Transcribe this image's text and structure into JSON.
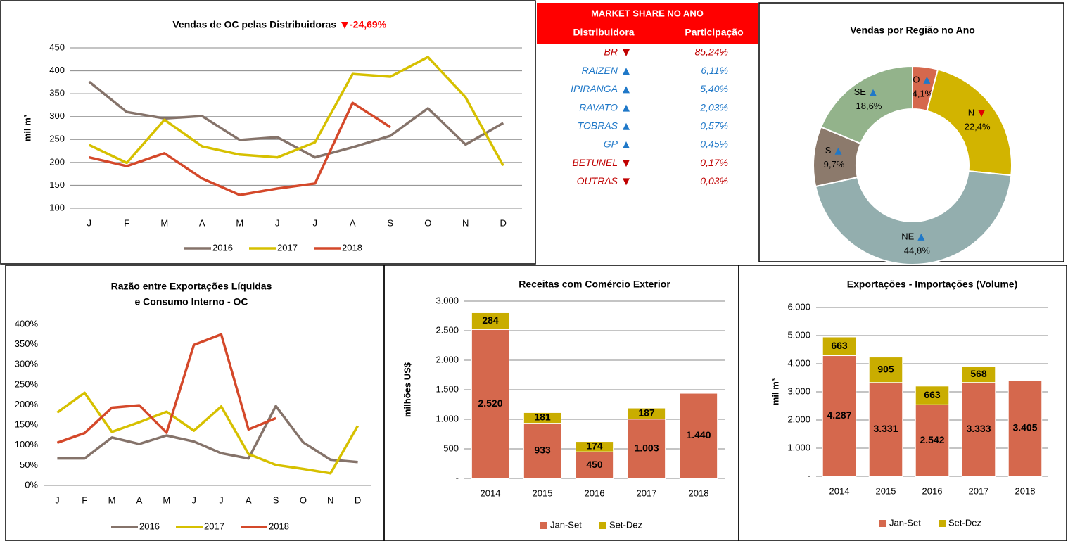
{
  "chart_data": [
    {
      "type": "line",
      "title": "Vendas de OC pelas Distribuidoras",
      "annotation": "-24,69%",
      "ylabel": "mil m³",
      "categories": [
        "J",
        "F",
        "M",
        "A",
        "M",
        "J",
        "J",
        "A",
        "S",
        "O",
        "N",
        "D"
      ],
      "series": [
        {
          "name": "2016",
          "color": "#85736a",
          "values": [
            376,
            310,
            296,
            301,
            249,
            255,
            211,
            233,
            258,
            318,
            239,
            286
          ]
        },
        {
          "name": "2017",
          "color": "#d6c000",
          "values": [
            238,
            199,
            293,
            235,
            217,
            211,
            244,
            393,
            387,
            430,
            342,
            193
          ]
        },
        {
          "name": "2018",
          "color": "#d4482a",
          "values": [
            211,
            192,
            220,
            165,
            129,
            143,
            154,
            330,
            277,
            null,
            null,
            null
          ]
        }
      ],
      "ylim": [
        100,
        450
      ],
      "yticks": [
        100,
        150,
        200,
        250,
        300,
        350,
        400,
        450
      ],
      "grid": true
    },
    {
      "type": "pie",
      "donut": true,
      "title": "Vendas por Região no Ano",
      "categories": [
        "CO",
        "N",
        "NE",
        "S",
        "SE"
      ],
      "values": [
        4.1,
        22.4,
        44.8,
        9.7,
        18.6
      ],
      "value_labels": [
        "4,1%",
        "22,4%",
        "44,8%",
        "9,7%",
        "18,6%"
      ],
      "colors": [
        "#d5684d",
        "#d2b400",
        "#93aeae",
        "#8c7a6c",
        "#93b38b"
      ],
      "trends": [
        "up",
        "down",
        "up",
        "up",
        "up"
      ],
      "trend_colors": {
        "up": "#1f78c8",
        "down": "#e00000"
      }
    },
    {
      "type": "line",
      "title": [
        "Razão entre Exportações Líquidas",
        "e Consumo Interno - OC"
      ],
      "categories": [
        "J",
        "F",
        "M",
        "A",
        "M",
        "J",
        "J",
        "A",
        "S",
        "O",
        "N",
        "D"
      ],
      "series": [
        {
          "name": "2016",
          "color": "#85736a",
          "values": [
            67,
            67,
            119,
            103,
            124,
            109,
            80,
            67,
            197,
            107,
            64,
            58
          ]
        },
        {
          "name": "2017",
          "color": "#d6c000",
          "values": [
            181,
            230,
            133,
            157,
            183,
            136,
            196,
            78,
            51,
            41,
            30,
            148
          ]
        },
        {
          "name": "2018",
          "color": "#d4482a",
          "values": [
            106,
            130,
            193,
            199,
            131,
            349,
            375,
            139,
            167,
            null,
            null,
            null
          ]
        }
      ],
      "ylim": [
        0,
        400
      ],
      "yticks": [
        {
          "value": 0,
          "label": "0%"
        },
        {
          "value": 50,
          "label": "50%"
        },
        {
          "value": 100,
          "label": "100%"
        },
        {
          "value": 150,
          "label": "150%"
        },
        {
          "value": 200,
          "label": "200%"
        },
        {
          "value": 250,
          "label": "250%"
        },
        {
          "value": 300,
          "label": "300%"
        },
        {
          "value": 350,
          "label": "350%"
        },
        {
          "value": 400,
          "label": "400%"
        }
      ],
      "grid": false
    },
    {
      "type": "bar",
      "stacked": true,
      "title": "Receitas com Comércio Exterior",
      "ylabel": "milhões US$",
      "categories": [
        "2014",
        "2015",
        "2016",
        "2017",
        "2018"
      ],
      "series": [
        {
          "name": "Jan-Set",
          "color": "#d5684d",
          "values": [
            2520,
            933,
            450,
            1003,
            1440
          ],
          "value_labels": [
            "2.520",
            "933",
            "450",
            "1.003",
            "1.440"
          ]
        },
        {
          "name": "Set-Dez",
          "color": "#c9ad00",
          "values": [
            284,
            181,
            174,
            187,
            null
          ],
          "value_labels": [
            "284",
            "181",
            "174",
            "187",
            null
          ]
        }
      ],
      "ylim": [
        0,
        3000
      ],
      "yticks": [
        {
          "value": 0,
          "label": "-"
        },
        500,
        {
          "value": 1000,
          "label": "1.000"
        },
        {
          "value": 1500,
          "label": "1.500"
        },
        {
          "value": 2000,
          "label": "2.000"
        },
        {
          "value": 2500,
          "label": "2.500"
        },
        {
          "value": 3000,
          "label": "3.000"
        }
      ],
      "grid": true
    },
    {
      "type": "bar",
      "stacked": true,
      "title": "Exportações - Importações (Volume)",
      "ylabel": "mil m³",
      "categories": [
        "2014",
        "2015",
        "2016",
        "2017",
        "2018"
      ],
      "series": [
        {
          "name": "Jan-Set",
          "color": "#d5684d",
          "values": [
            4287,
            3331,
            2542,
            3333,
            3405
          ],
          "value_labels": [
            "4.287",
            "3.331",
            "2.542",
            "3.333",
            "3.405"
          ]
        },
        {
          "name": "Set-Dez",
          "color": "#c9ad00",
          "values": [
            663,
            905,
            663,
            568,
            null
          ],
          "value_labels": [
            "663",
            "905",
            "663",
            "568",
            null
          ]
        }
      ],
      "ylim": [
        0,
        6000
      ],
      "yticks": [
        {
          "value": 0,
          "label": "-"
        },
        {
          "value": 1000,
          "label": "1.000"
        },
        {
          "value": 2000,
          "label": "2.000"
        },
        {
          "value": 3000,
          "label": "3.000"
        },
        {
          "value": 4000,
          "label": "4.000"
        },
        {
          "value": 5000,
          "label": "5.000"
        },
        {
          "value": 6000,
          "label": "6.000"
        }
      ],
      "grid": true
    }
  ],
  "table": {
    "title": "MARKET SHARE NO ANO",
    "columns": [
      "Distribuidora",
      "Participação"
    ],
    "rows": [
      [
        "BR",
        "85,24%"
      ],
      [
        "RAIZEN",
        "6,11%"
      ],
      [
        "IPIRANGA",
        "5,40%"
      ],
      [
        "RAVATO",
        "2,03%"
      ],
      [
        "TOBRAS",
        "0,57%"
      ],
      [
        "GP",
        "0,45%"
      ],
      [
        "BETUNEL",
        "0,17%"
      ],
      [
        "OUTRAS",
        "0,03%"
      ]
    ],
    "trends": [
      "down",
      "up",
      "up",
      "up",
      "up",
      "up",
      "down",
      "down"
    ],
    "trend_colors": {
      "up": "#1f78c8",
      "down": "#c00000"
    }
  }
}
